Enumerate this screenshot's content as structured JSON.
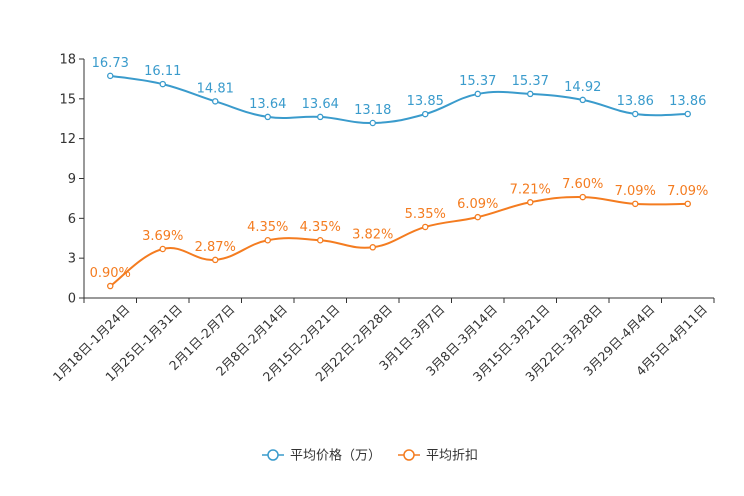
{
  "chart_data": {
    "type": "line",
    "title": "",
    "xlabel": "",
    "ylabel": "",
    "ylim": [
      0,
      18
    ],
    "yticks": [
      0,
      3,
      6,
      9,
      12,
      15,
      18
    ],
    "categories": [
      "1月18日-1月24日",
      "1月25日-1月31日",
      "2月1日-2月7日",
      "2月8日-2月14日",
      "2月15日-2月21日",
      "2月22日-2月28日",
      "3月1日-3月7日",
      "3月8日-3月14日",
      "3月15日-3月21日",
      "3月22日-3月28日",
      "3月29日-4月4日",
      "4月5日-4月11日"
    ],
    "series": [
      {
        "name": "平均价格（万）",
        "color": "#3a9bcc",
        "values": [
          16.73,
          16.11,
          14.81,
          13.64,
          13.64,
          13.18,
          13.85,
          15.37,
          15.37,
          14.92,
          13.86,
          13.86
        ],
        "labels": [
          "16.73",
          "16.11",
          "14.81",
          "13.64",
          "13.64",
          "13.18",
          "13.85",
          "15.37",
          "15.37",
          "14.92",
          "13.86",
          "13.86"
        ]
      },
      {
        "name": "平均折扣",
        "color": "#f47c20",
        "values": [
          0.9,
          3.69,
          2.87,
          4.35,
          4.35,
          3.82,
          5.35,
          6.09,
          7.21,
          7.6,
          7.09,
          7.09
        ],
        "labels": [
          "0.90%",
          "3.69%",
          "2.87%",
          "4.35%",
          "4.35%",
          "3.82%",
          "5.35%",
          "6.09%",
          "7.21%",
          "7.60%",
          "7.09%",
          "7.09%"
        ]
      }
    ],
    "legend_position": "bottom-center",
    "grid": false
  }
}
